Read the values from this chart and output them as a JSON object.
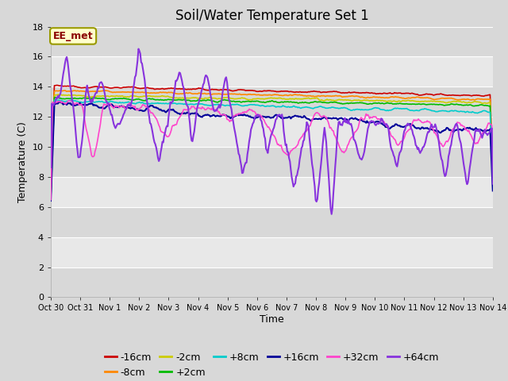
{
  "title": "Soil/Water Temperature Set 1",
  "xlabel": "Time",
  "ylabel": "Temperature (C)",
  "ylim": [
    0,
    18
  ],
  "yticks": [
    0,
    2,
    4,
    6,
    8,
    10,
    12,
    14,
    16,
    18
  ],
  "x_labels": [
    "Oct 30",
    "Oct 31",
    "Nov 1",
    "Nov 2",
    "Nov 3",
    "Nov 4",
    "Nov 5",
    "Nov 6",
    "Nov 7",
    "Nov 8",
    "Nov 9",
    "Nov 10",
    "Nov 11",
    "Nov 12",
    "Nov 13",
    "Nov 14"
  ],
  "n_days": 15,
  "series": [
    {
      "label": "-16cm",
      "color": "#cc0000"
    },
    {
      "label": "-8cm",
      "color": "#ff8800"
    },
    {
      "label": "-2cm",
      "color": "#cccc00"
    },
    {
      "label": "+2cm",
      "color": "#00bb00"
    },
    {
      "label": "+8cm",
      "color": "#00cccc"
    },
    {
      "label": "+16cm",
      "color": "#000099"
    },
    {
      "label": "+32cm",
      "color": "#ff44cc"
    },
    {
      "label": "+64cm",
      "color": "#8833dd"
    }
  ],
  "annotation_text": "EE_met",
  "annotation_color": "#8b0000",
  "annotation_bg": "#ffffcc",
  "annotation_edge": "#999900",
  "bg_color": "#d8d8d8",
  "plot_bg_dark": "#d8d8d8",
  "plot_bg_light": "#e8e8e8",
  "grid_color": "#ffffff",
  "title_fontsize": 12,
  "axis_fontsize": 9,
  "tick_fontsize": 8,
  "legend_fontsize": 9
}
